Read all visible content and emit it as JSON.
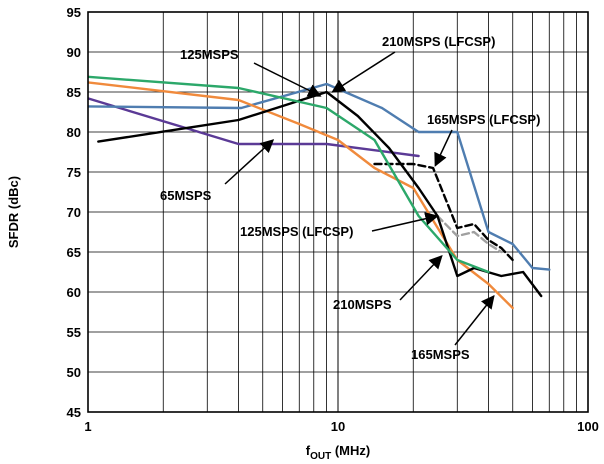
{
  "chart_data": {
    "type": "line",
    "xlabel": "fOUT (MHz)",
    "xlabel_main": "f",
    "xlabel_sub": "OUT",
    "xlabel_unit": " (MHz)",
    "ylabel": "SFDR (dBc)",
    "x_scale": "log",
    "xlim": [
      1,
      100
    ],
    "ylim": [
      45,
      95
    ],
    "x_ticks": [
      1,
      10,
      100
    ],
    "y_ticks": [
      45,
      50,
      55,
      60,
      65,
      70,
      75,
      80,
      85,
      90,
      95
    ],
    "grid": true,
    "series": [
      {
        "name": "65MSPS",
        "color": "#5b3a96",
        "dash": "solid",
        "x": [
          1,
          4,
          9,
          21
        ],
        "y": [
          84.2,
          78.5,
          78.5,
          77
        ]
      },
      {
        "name": "125MSPS",
        "color": "#4f7db0",
        "dash": "solid",
        "x": [
          1,
          4.1,
          9,
          15,
          21,
          30,
          40,
          50,
          60,
          70
        ],
        "y": [
          83.2,
          83,
          86,
          83,
          80,
          80,
          67.5,
          66,
          63,
          62.8
        ]
      },
      {
        "name": "125MSPS (LFCSP)",
        "color": "#a0a0a0",
        "dash": "dashed",
        "x": [
          25,
          30,
          35,
          40,
          45
        ],
        "y": [
          69.5,
          67,
          67.5,
          66,
          65
        ]
      },
      {
        "name": "165MSPS",
        "color": "#f08a3c",
        "dash": "solid",
        "x": [
          1,
          4,
          7,
          10,
          14,
          20,
          30,
          40,
          50
        ],
        "y": [
          86.2,
          84,
          81,
          79,
          75.5,
          73,
          64,
          61,
          58
        ]
      },
      {
        "name": "165MSPS (LFCSP)",
        "color": "#000000",
        "dash": "dashed",
        "x": [
          14,
          20,
          24,
          30,
          35,
          40,
          45,
          50
        ],
        "y": [
          76,
          76,
          75.5,
          68,
          68.5,
          66.5,
          65.5,
          64
        ]
      },
      {
        "name": "210MSPS",
        "color": "#000000",
        "dash": "solid",
        "x": [
          1.1,
          4,
          9,
          12,
          16,
          21,
          25,
          30,
          35,
          45,
          55,
          65
        ],
        "y": [
          78.8,
          81.5,
          85,
          82,
          78,
          73,
          69.5,
          62,
          63,
          62,
          62.5,
          59.5
        ]
      },
      {
        "name": "210MSPS (LFCSP)",
        "color": "#2ca86a",
        "dash": "solid",
        "x": [
          1,
          4,
          9,
          14,
          21,
          30,
          40
        ],
        "y": [
          86.9,
          85.5,
          83,
          79,
          69.5,
          64,
          62.5
        ]
      }
    ],
    "annotations": [
      {
        "text": "125MSPS",
        "point": [
          8.5,
          84.5
        ]
      },
      {
        "text": "210MSPS (LFCSP)",
        "point": [
          9.5,
          85
        ]
      },
      {
        "text": "165MSPS (LFCSP)",
        "point": [
          24.5,
          75.8
        ]
      },
      {
        "text": "65MSPS",
        "point": [
          5.5,
          79
        ]
      },
      {
        "text": "125MSPS (LFCSP)",
        "point": [
          25,
          69.5
        ]
      },
      {
        "text": "210MSPS",
        "point": [
          26,
          64.5
        ]
      },
      {
        "text": "165MSPS",
        "point": [
          42,
          59.5
        ]
      }
    ]
  }
}
